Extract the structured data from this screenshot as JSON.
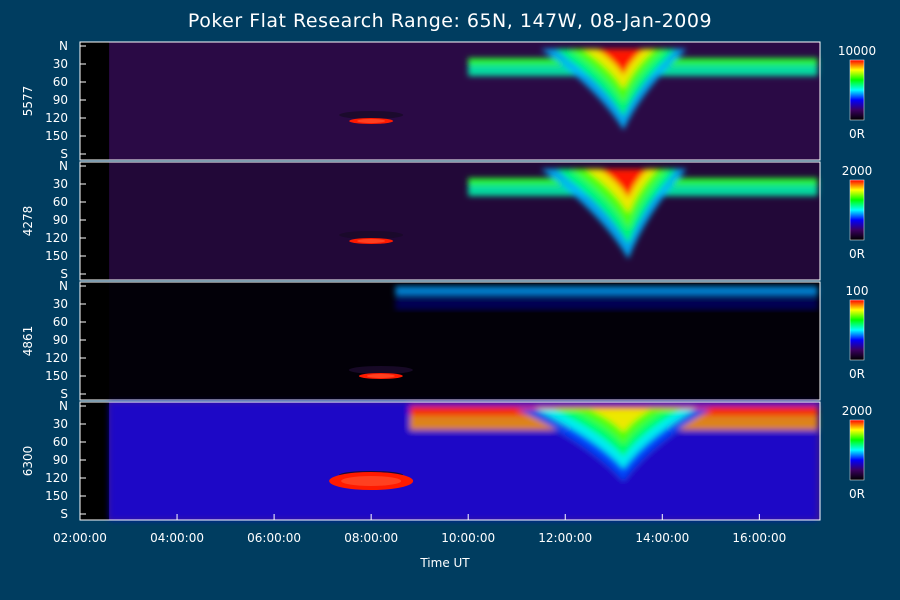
{
  "chart_data": {
    "type": "heatmap",
    "title": "Poker Flat Research Range: 65N, 147W, 08-Jan-2009",
    "xlabel": "Time UT",
    "x_ticks": [
      "02:00:00",
      "04:00:00",
      "06:00:00",
      "08:00:00",
      "10:00:00",
      "12:00:00",
      "14:00:00",
      "16:00:00"
    ],
    "x_range_hours": [
      2,
      17.25
    ],
    "y_ticks": [
      "N",
      "30",
      "60",
      "90",
      "120",
      "150",
      "S"
    ],
    "y_range_deg": [
      0,
      180
    ],
    "colormap": [
      "#000000",
      "#3a0060",
      "#0000ff",
      "#00ffff",
      "#00ff00",
      "#ffff00",
      "#ff0000"
    ],
    "panels": [
      {
        "ylabel": "5577",
        "colorbar_max": "10000",
        "colorbar_min": "0R",
        "features": [
          {
            "kind": "arc",
            "start": 10.0,
            "end": 17.2,
            "lat_lo": 20,
            "lat_hi": 50,
            "intensity": 0.55
          },
          {
            "kind": "substorm",
            "start": 11.5,
            "peak": 13.2,
            "end": 14.5,
            "lat_hi": 140,
            "intensity": 1.0
          },
          {
            "kind": "moon",
            "time": 8.0,
            "lat": 125
          }
        ]
      },
      {
        "ylabel": "4278",
        "colorbar_max": "2000",
        "colorbar_min": "0R",
        "features": [
          {
            "kind": "arc",
            "start": 10.0,
            "end": 17.2,
            "lat_lo": 20,
            "lat_hi": 50,
            "intensity": 0.55
          },
          {
            "kind": "substorm",
            "start": 11.5,
            "peak": 13.3,
            "end": 14.5,
            "lat_hi": 155,
            "intensity": 1.0
          },
          {
            "kind": "moon",
            "time": 8.0,
            "lat": 125
          }
        ]
      },
      {
        "ylabel": "4861",
        "colorbar_max": "100",
        "colorbar_min": "0R",
        "features": [
          {
            "kind": "noise",
            "start": 8.5,
            "end": 17.2,
            "lat_lo": 0,
            "lat_hi": 40,
            "intensity": 0.3
          },
          {
            "kind": "moon",
            "time": 8.2,
            "lat": 150
          }
        ]
      },
      {
        "ylabel": "6300",
        "colorbar_max": "2000",
        "colorbar_min": "0R",
        "features": [
          {
            "kind": "background",
            "start": 2.6,
            "end": 17.2,
            "intensity": 0.3
          },
          {
            "kind": "arc",
            "start": 8.8,
            "end": 17.2,
            "lat_lo": 0,
            "lat_hi": 40,
            "intensity": 0.9
          },
          {
            "kind": "substorm",
            "start": 11.0,
            "peak": 13.2,
            "end": 15.0,
            "lat_hi": 125,
            "intensity": 0.85
          },
          {
            "kind": "moon",
            "time": 8.0,
            "lat": 125
          }
        ]
      }
    ]
  }
}
